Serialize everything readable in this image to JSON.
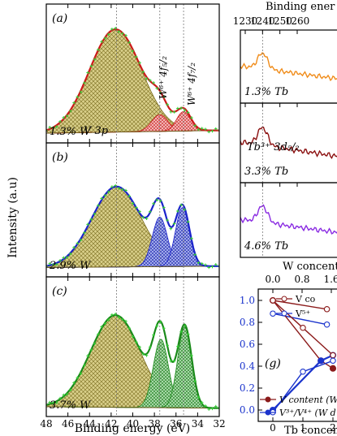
{
  "chart_data": [
    {
      "type": "area",
      "id": "xps-w",
      "xlabel": "Binding energy (eV)",
      "ylabel": "Intensity (a.u)",
      "xlim": [
        48,
        32
      ],
      "xticks": [
        48,
        46,
        44,
        42,
        40,
        38,
        36,
        34,
        32
      ],
      "guide_lines": [
        41.5,
        37.5,
        35.3
      ],
      "peak_labels": {
        "v3p": "V 3p",
        "w52": "W⁶⁺ 4f₅/₂",
        "w72": "W⁶⁺ 4f₇/₂"
      },
      "panels": [
        {
          "tag": "(a)",
          "sample": "1.3% W",
          "color": "#cc1a1a",
          "peaks": [
            {
              "center": 41.6,
              "height": 0.74,
              "width": 2.4,
              "fill": "#8a7d2e"
            },
            {
              "center": 37.5,
              "height": 0.12,
              "width": 0.75,
              "fill": "#e05050"
            },
            {
              "center": 35.3,
              "height": 0.14,
              "width": 0.65,
              "fill": "#e05050"
            }
          ],
          "bg_left": 0.07,
          "bg_right": 0.09
        },
        {
          "tag": "(b)",
          "sample": "2.9% W",
          "color": "#1a22cc",
          "peaks": [
            {
              "center": 41.5,
              "height": 0.6,
              "width": 2.3,
              "fill": "#8a7d2e"
            },
            {
              "center": 37.5,
              "height": 0.37,
              "width": 0.7,
              "fill": "#2233bb"
            },
            {
              "center": 35.4,
              "height": 0.44,
              "width": 0.65,
              "fill": "#2233bb"
            }
          ],
          "bg_left": 0.07,
          "bg_right": 0.08
        },
        {
          "tag": "(c)",
          "sample": "3.7% W",
          "color": "#1a8a1a",
          "peaks": [
            {
              "center": 41.6,
              "height": 0.66,
              "width": 2.3,
              "fill": "#8a7d2e"
            },
            {
              "center": 37.4,
              "height": 0.49,
              "width": 0.7,
              "fill": "#2a8a2a"
            },
            {
              "center": 35.2,
              "height": 0.58,
              "width": 0.65,
              "fill": "#2a8a2a"
            }
          ],
          "bg_left": 0.07,
          "bg_right": 0.06
        }
      ]
    },
    {
      "type": "line",
      "id": "xps-tb",
      "xlabel": "Binding ener",
      "xticks": [
        1230,
        1240,
        1250,
        1260
      ],
      "peak_label": "Tb³⁺ 3d₅/₂",
      "panels": [
        {
          "sample": "1.3% Tb",
          "color": "#f08c1a"
        },
        {
          "sample": "3.3% Tb",
          "color": "#8b1010"
        },
        {
          "sample": "4.6% Tb",
          "color": "#8a2be2"
        }
      ]
    },
    {
      "type": "line",
      "id": "composition",
      "panel_tag": "(g)",
      "top_xlabel": "W concent",
      "top_xticks": [
        "0.0",
        "0.8",
        "1.6"
      ],
      "bottom_xlabel": "Tb concen",
      "bottom_xticks": [
        "0",
        "1",
        "2"
      ],
      "yticks": [
        "1.0",
        "0.8",
        "0.6",
        "0.4",
        "0.2",
        "0.0"
      ],
      "legend": {
        "v_content_top": "V co",
        "v54_top": "V⁵⁺",
        "v_content_w": "V content (W d",
        "v34_w": "V³⁺/V⁴⁺ (W d"
      },
      "series": [
        {
          "key": "v_content_top",
          "color": "#8b1a1a",
          "marker": "open",
          "x": [
            0.0,
            1.8
          ],
          "y": [
            1.0,
            0.92
          ]
        },
        {
          "key": "v54_top",
          "color": "#1a33cc",
          "marker": "open",
          "x": [
            0.0,
            1.8
          ],
          "y": [
            0.88,
            0.78
          ]
        },
        {
          "key": "v_content_w",
          "color": "#8b1a1a",
          "marker": "filled",
          "x": [
            0.0,
            1.6,
            2.0
          ],
          "y": [
            1.0,
            0.45,
            0.38
          ]
        },
        {
          "key": "v34_w",
          "color": "#1a33cc",
          "marker": "filled",
          "x": [
            0.0,
            1.6,
            2.0
          ],
          "y": [
            0.0,
            0.45,
            0.5
          ]
        },
        {
          "key": "v_content_tb",
          "color": "#8b1a1a",
          "marker": "open",
          "x": [
            0.0,
            1.0,
            2.0
          ],
          "y": [
            1.0,
            0.75,
            0.5
          ]
        },
        {
          "key": "v34_tb",
          "color": "#1a33cc",
          "marker": "open",
          "x": [
            0.0,
            1.0,
            2.0
          ],
          "y": [
            -0.02,
            0.35,
            0.45
          ]
        }
      ]
    }
  ]
}
